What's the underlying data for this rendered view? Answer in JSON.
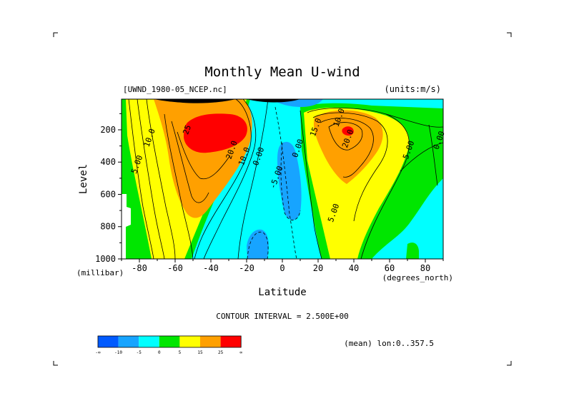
{
  "chart_data": {
    "type": "heatmap",
    "title": "Monthly Mean U-wind",
    "dataset_label": "[UWND_1980-05_NCEP.nc]",
    "units_label": "(units:m/s)",
    "xlabel": "Latitude",
    "xunits": "(degrees_north)",
    "ylabel": "Level",
    "yunits": "(millibar)",
    "xlim": [
      -90,
      90
    ],
    "ylim": [
      1000,
      10
    ],
    "x_ticks": [
      -80,
      -60,
      -40,
      -20,
      0,
      20,
      40,
      60,
      80
    ],
    "y_ticks": [
      200,
      400,
      600,
      800,
      1000
    ],
    "contour_interval_text": "CONTOUR INTERVAL = 2.500E+00",
    "footer_text": "(mean) lon:0..357.5",
    "contour_labels": [
      {
        "text": "10.0",
        "lat": -73,
        "level": 255
      },
      {
        "text": "5.00",
        "lat": -80,
        "level": 420
      },
      {
        "text": "25",
        "lat": -52,
        "level": 205
      },
      {
        "text": "20.0",
        "lat": -27,
        "level": 330
      },
      {
        "text": "10.0",
        "lat": -20,
        "level": 370
      },
      {
        "text": "0.00",
        "lat": -12,
        "level": 370
      },
      {
        "text": "-5.00",
        "lat": -2,
        "level": 500
      },
      {
        "text": "0.00",
        "lat": 10,
        "level": 320
      },
      {
        "text": "10.0",
        "lat": 33,
        "level": 130
      },
      {
        "text": "15.0",
        "lat": 20,
        "level": 190
      },
      {
        "text": "20.0",
        "lat": 38,
        "level": 260
      },
      {
        "text": "5.00",
        "lat": 30,
        "level": 720
      },
      {
        "text": "5.00",
        "lat": 72,
        "level": 330
      },
      {
        "text": "0.00",
        "lat": 89,
        "level": 270
      }
    ],
    "colorbar": {
      "colors": [
        "#005aff",
        "#17a4ff",
        "#00ffff",
        "#00e600",
        "#ffff00",
        "#ffa000",
        "#ff0000"
      ],
      "labels": [
        "-∞",
        "-10",
        "-5",
        "0",
        "5",
        "15",
        "25",
        "∞"
      ]
    }
  }
}
